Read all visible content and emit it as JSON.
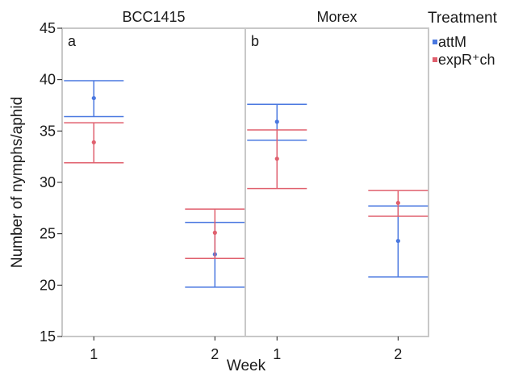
{
  "chart_data": {
    "type": "scatter",
    "subtype": "error-bar",
    "ylabel": "Number of nymphs/aphid",
    "xlabel": "Week",
    "ylim": [
      15,
      45
    ],
    "yticks": [
      15,
      20,
      25,
      30,
      35,
      40,
      45
    ],
    "categories": [
      "1",
      "2"
    ],
    "legend": {
      "title": "Treatment",
      "placement": "right",
      "entries": [
        {
          "label": "attM",
          "color": "#4a78e0"
        },
        {
          "label": "expR⁺ch",
          "color": "#e0606e"
        }
      ]
    },
    "grid": false,
    "panels": [
      {
        "title": "BCC1415",
        "tag": "a",
        "series": [
          {
            "name": "attM",
            "color": "#4a78e0",
            "points": [
              {
                "x": "1",
                "y": 38.2,
                "lower": 36.4,
                "upper": 39.9
              },
              {
                "x": "2",
                "y": 23.0,
                "lower": 19.8,
                "upper": 26.1
              }
            ]
          },
          {
            "name": "expR⁺ch",
            "color": "#e0606e",
            "points": [
              {
                "x": "1",
                "y": 33.9,
                "lower": 31.9,
                "upper": 35.8
              },
              {
                "x": "2",
                "y": 25.1,
                "lower": 22.6,
                "upper": 27.4
              }
            ]
          }
        ]
      },
      {
        "title": "Morex",
        "tag": "b",
        "series": [
          {
            "name": "attM",
            "color": "#4a78e0",
            "points": [
              {
                "x": "1",
                "y": 35.9,
                "lower": 34.1,
                "upper": 37.6
              },
              {
                "x": "2",
                "y": 24.3,
                "lower": 20.8,
                "upper": 27.7
              }
            ]
          },
          {
            "name": "expR⁺ch",
            "color": "#e0606e",
            "points": [
              {
                "x": "1",
                "y": 32.3,
                "lower": 29.4,
                "upper": 35.1
              },
              {
                "x": "2",
                "y": 28.0,
                "lower": 26.7,
                "upper": 29.2
              }
            ]
          }
        ]
      }
    ]
  }
}
